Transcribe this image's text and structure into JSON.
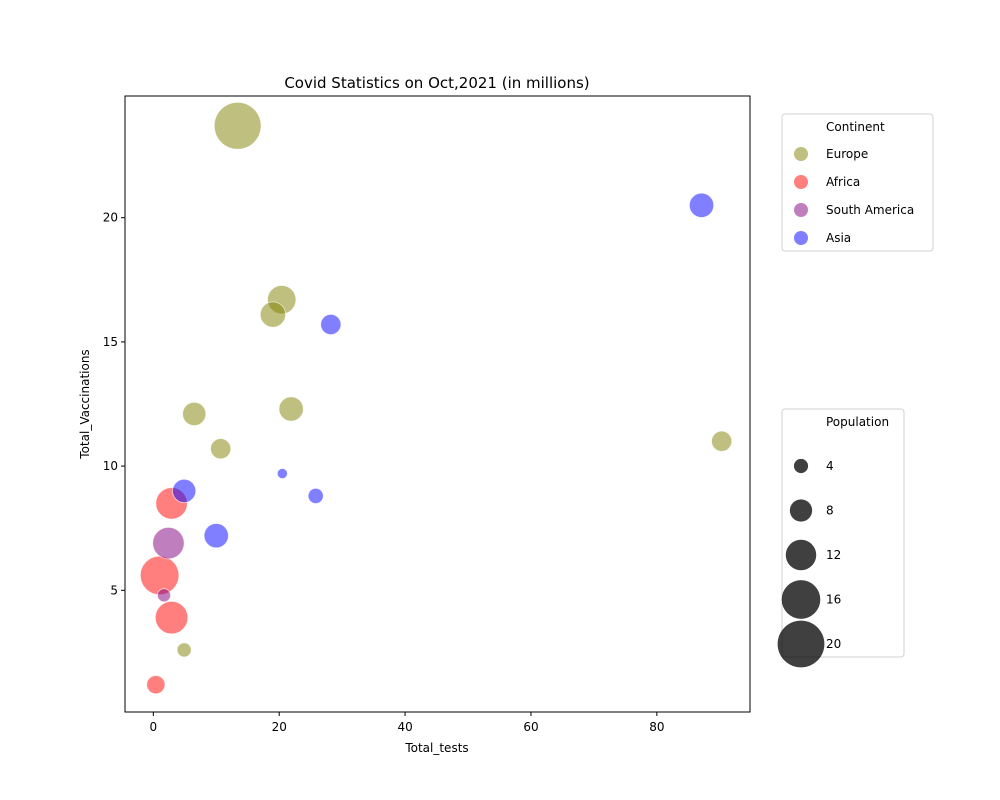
{
  "chart_data": {
    "type": "scatter",
    "title": "Covid Statistics on Oct,2021 (in millions)",
    "xlabel": "Total_tests",
    "ylabel": "Total_Vaccinations",
    "xlim": [
      -4.5,
      94.8
    ],
    "ylim": [
      0.1,
      24.9
    ],
    "xticks": [
      "0",
      "20",
      "40",
      "60",
      "80"
    ],
    "xtick_values": [
      0,
      20,
      40,
      60,
      80
    ],
    "yticks": [
      "5",
      "10",
      "15",
      "20"
    ],
    "ytick_values": [
      5,
      10,
      15,
      20
    ],
    "grid": false,
    "series": [
      {
        "name": "Europe",
        "color": "#808000",
        "points": [
          {
            "x": 13.4,
            "y": 23.7,
            "size": 20.0
          },
          {
            "x": 20.4,
            "y": 16.7,
            "size": 11.0
          },
          {
            "x": 19.0,
            "y": 16.1,
            "size": 9.5
          },
          {
            "x": 21.9,
            "y": 12.3,
            "size": 9.0
          },
          {
            "x": 6.5,
            "y": 12.1,
            "size": 8.5
          },
          {
            "x": 10.7,
            "y": 10.7,
            "size": 7.0
          },
          {
            "x": 90.3,
            "y": 11.0,
            "size": 7.0
          },
          {
            "x": 4.9,
            "y": 2.6,
            "size": 4.0
          }
        ]
      },
      {
        "name": "Africa",
        "color": "#ff0000",
        "points": [
          {
            "x": 1.0,
            "y": 5.6,
            "size": 16.0
          },
          {
            "x": 2.9,
            "y": 3.9,
            "size": 13.0
          },
          {
            "x": 2.9,
            "y": 8.5,
            "size": 12.5
          },
          {
            "x": 0.4,
            "y": 1.2,
            "size": 6.0
          }
        ]
      },
      {
        "name": "South America",
        "color": "#800080",
        "points": [
          {
            "x": 2.4,
            "y": 6.9,
            "size": 12.5
          },
          {
            "x": 1.7,
            "y": 4.8,
            "size": 3.5
          }
        ]
      },
      {
        "name": "Asia",
        "color": "#0000ff",
        "points": [
          {
            "x": 87.1,
            "y": 20.5,
            "size": 9.0
          },
          {
            "x": 28.2,
            "y": 15.7,
            "size": 7.0
          },
          {
            "x": 4.9,
            "y": 9.0,
            "size": 8.5
          },
          {
            "x": 10.0,
            "y": 7.2,
            "size": 9.0
          },
          {
            "x": 25.8,
            "y": 8.8,
            "size": 4.5
          },
          {
            "x": 20.5,
            "y": 9.7,
            "size": 2.0
          }
        ]
      }
    ],
    "legend_continent": {
      "title": "Continent",
      "placement": "upper-right-outside",
      "entries": [
        "Europe",
        "Africa",
        "South America",
        "Asia"
      ]
    },
    "legend_population": {
      "title": "Population",
      "placement": "right-outside",
      "entries": [
        {
          "label": "4",
          "size": 4
        },
        {
          "label": "8",
          "size": 8
        },
        {
          "label": "12",
          "size": 12
        },
        {
          "label": "16",
          "size": 16
        },
        {
          "label": "20",
          "size": 20
        }
      ]
    },
    "marker_alpha": 0.5,
    "size_legend_color": "#000000"
  }
}
